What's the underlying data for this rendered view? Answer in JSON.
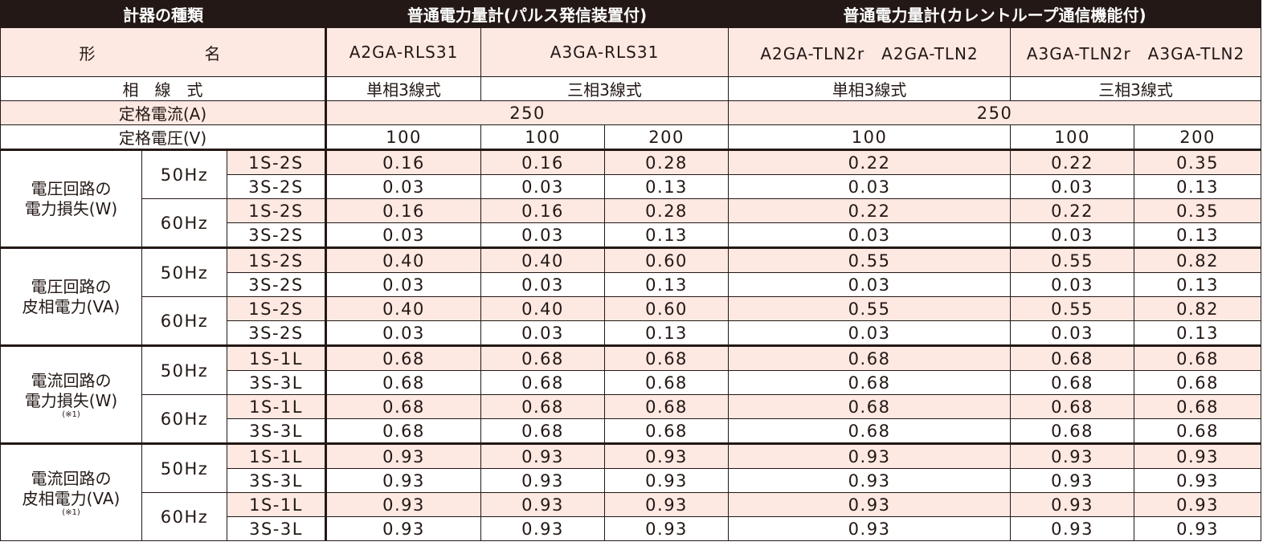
{
  "header": {
    "type_label": "計器の種類",
    "group_pulse": "普通電力量計(パルス発信装置付)",
    "group_current_loop": "普通電力量計(カレントループ通信機能付)"
  },
  "labels": {
    "model": "形　　名",
    "phase": "相　線　式",
    "rated_current": "定格電流(A)",
    "rated_voltage": "定格電圧(V)"
  },
  "models": [
    "A2GA-RLS31",
    "A3GA-RLS31",
    "A2GA-TLN2r　A2GA-TLN2",
    "A3GA-TLN2r　A3GA-TLN2"
  ],
  "phases": [
    "単相3線式",
    "三相3線式",
    "単相3線式",
    "三相3線式"
  ],
  "rated_current": [
    "250",
    "250"
  ],
  "rated_voltage": [
    "100",
    "100",
    "200",
    "100",
    "100",
    "200"
  ],
  "note_mark": "(※1)",
  "groups": [
    {
      "label_line1": "電圧回路の",
      "label_line2": "電力損失(W)",
      "note": "",
      "freqs": [
        {
          "freq": "50Hz",
          "rows": [
            {
              "terminal": "1S-2S",
              "values": [
                "0.16",
                "0.16",
                "0.28",
                "0.22",
                "0.22",
                "0.35"
              ]
            },
            {
              "terminal": "3S-2S",
              "values": [
                "0.03",
                "0.03",
                "0.13",
                "0.03",
                "0.03",
                "0.13"
              ]
            }
          ]
        },
        {
          "freq": "60Hz",
          "rows": [
            {
              "terminal": "1S-2S",
              "values": [
                "0.16",
                "0.16",
                "0.28",
                "0.22",
                "0.22",
                "0.35"
              ]
            },
            {
              "terminal": "3S-2S",
              "values": [
                "0.03",
                "0.03",
                "0.13",
                "0.03",
                "0.03",
                "0.13"
              ]
            }
          ]
        }
      ]
    },
    {
      "label_line1": "電圧回路の",
      "label_line2": "皮相電力(VA)",
      "note": "",
      "freqs": [
        {
          "freq": "50Hz",
          "rows": [
            {
              "terminal": "1S-2S",
              "values": [
                "0.40",
                "0.40",
                "0.60",
                "0.55",
                "0.55",
                "0.82"
              ]
            },
            {
              "terminal": "3S-2S",
              "values": [
                "0.03",
                "0.03",
                "0.13",
                "0.03",
                "0.03",
                "0.13"
              ]
            }
          ]
        },
        {
          "freq": "60Hz",
          "rows": [
            {
              "terminal": "1S-2S",
              "values": [
                "0.40",
                "0.40",
                "0.60",
                "0.55",
                "0.55",
                "0.82"
              ]
            },
            {
              "terminal": "3S-2S",
              "values": [
                "0.03",
                "0.03",
                "0.13",
                "0.03",
                "0.03",
                "0.13"
              ]
            }
          ]
        }
      ]
    },
    {
      "label_line1": "電流回路の",
      "label_line2": "電力損失(W)",
      "note": "(※1)",
      "freqs": [
        {
          "freq": "50Hz",
          "rows": [
            {
              "terminal": "1S-1L",
              "values": [
                "0.68",
                "0.68",
                "0.68",
                "0.68",
                "0.68",
                "0.68"
              ]
            },
            {
              "terminal": "3S-3L",
              "values": [
                "0.68",
                "0.68",
                "0.68",
                "0.68",
                "0.68",
                "0.68"
              ]
            }
          ]
        },
        {
          "freq": "60Hz",
          "rows": [
            {
              "terminal": "1S-1L",
              "values": [
                "0.68",
                "0.68",
                "0.68",
                "0.68",
                "0.68",
                "0.68"
              ]
            },
            {
              "terminal": "3S-3L",
              "values": [
                "0.68",
                "0.68",
                "0.68",
                "0.68",
                "0.68",
                "0.68"
              ]
            }
          ]
        }
      ]
    },
    {
      "label_line1": "電流回路の",
      "label_line2": "皮相電力(VA)",
      "note": "(※1)",
      "freqs": [
        {
          "freq": "50Hz",
          "rows": [
            {
              "terminal": "1S-1L",
              "values": [
                "0.93",
                "0.93",
                "0.93",
                "0.93",
                "0.93",
                "0.93"
              ]
            },
            {
              "terminal": "3S-3L",
              "values": [
                "0.93",
                "0.93",
                "0.93",
                "0.93",
                "0.93",
                "0.93"
              ]
            }
          ]
        },
        {
          "freq": "60Hz",
          "rows": [
            {
              "terminal": "1S-1L",
              "values": [
                "0.93",
                "0.93",
                "0.93",
                "0.93",
                "0.93",
                "0.93"
              ]
            },
            {
              "terminal": "3S-3L",
              "values": [
                "0.93",
                "0.93",
                "0.93",
                "0.93",
                "0.93",
                "0.93"
              ]
            }
          ]
        }
      ]
    }
  ]
}
